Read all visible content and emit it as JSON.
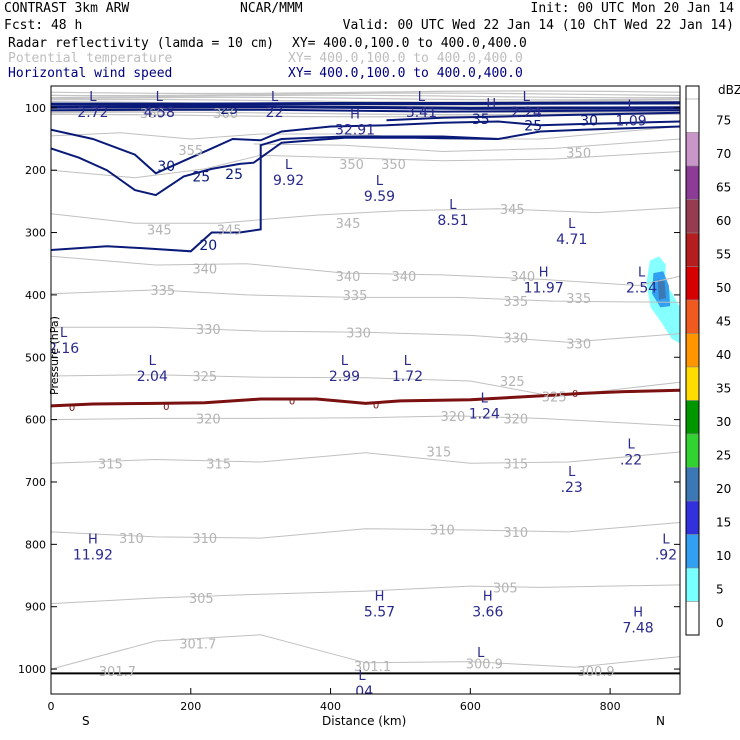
{
  "header": {
    "model": "CONTRAST  3km ARW",
    "center": "NCAR/MMM",
    "init": "Init: 00 UTC Mon 20 Jan 14",
    "fcst": "Fcst:   48 h",
    "valid": "Valid: 00 UTC Wed 22 Jan 14 (10 ChT Wed 22 Jan 14)",
    "fields": [
      {
        "name": "Radar reflectivity (lamda = 10 cm)",
        "xy": "XY= 400.0,100.0 to 400.0,400.0",
        "color": "#000000"
      },
      {
        "name": "Potential temperature",
        "xy": "XY= 400.0,100.0 to 400.0,400.0",
        "color": "#b4b4b4"
      },
      {
        "name": "Horizontal wind speed",
        "xy": "XY= 400.0,100.0 to 400.0,400.0",
        "color": "#000080"
      }
    ]
  },
  "chart_data": {
    "type": "cross-section contour",
    "xlabel": "Distance (km)",
    "ylabel": "Pressure (hPa)",
    "xlim": [
      0,
      900
    ],
    "ylim_hpa": [
      1040,
      65
    ],
    "x_ticks": [
      "0",
      "200",
      "400",
      "600",
      "800"
    ],
    "x_tick_values": [
      0,
      200,
      400,
      600,
      800
    ],
    "y_ticks": [
      "100",
      "200",
      "300",
      "400",
      "500",
      "600",
      "700",
      "800",
      "900",
      "1000"
    ],
    "y_tick_values": [
      100,
      200,
      300,
      400,
      500,
      600,
      700,
      800,
      900,
      1000
    ],
    "endpoints": {
      "left": "S",
      "right": "N"
    },
    "colorbar": {
      "unit": "dBZ",
      "levels": [
        "75",
        "70",
        "65",
        "60",
        "55",
        "50",
        "45",
        "40",
        "35",
        "30",
        "25",
        "20",
        "15",
        "10",
        "5",
        "0"
      ],
      "colors": [
        "#ffffff",
        "#c896c8",
        "#8c3c96",
        "#963c50",
        "#b41e1e",
        "#d70000",
        "#f05a1e",
        "#ff9600",
        "#ffdc00",
        "#009600",
        "#32d232",
        "#3c78b4",
        "#3232dc",
        "#32a0f0",
        "#78ffff",
        "#ffffff"
      ]
    },
    "theta_labels": [
      {
        "t": "360",
        "x": 145,
        "p": 108
      },
      {
        "t": "360",
        "x": 250,
        "p": 108
      },
      {
        "t": "355",
        "x": 200,
        "p": 168
      },
      {
        "t": "350",
        "x": 430,
        "p": 190
      },
      {
        "t": "350",
        "x": 490,
        "p": 190
      },
      {
        "t": "350",
        "x": 755,
        "p": 172
      },
      {
        "t": "345",
        "x": 155,
        "p": 295
      },
      {
        "t": "345",
        "x": 255,
        "p": 295
      },
      {
        "t": "345",
        "x": 425,
        "p": 285
      },
      {
        "t": "345",
        "x": 660,
        "p": 262
      },
      {
        "t": "340",
        "x": 220,
        "p": 358
      },
      {
        "t": "340",
        "x": 425,
        "p": 370
      },
      {
        "t": "340",
        "x": 505,
        "p": 370
      },
      {
        "t": "340",
        "x": 675,
        "p": 370
      },
      {
        "t": "335",
        "x": 160,
        "p": 392
      },
      {
        "t": "335",
        "x": 435,
        "p": 400
      },
      {
        "t": "335",
        "x": 665,
        "p": 410
      },
      {
        "t": "335",
        "x": 755,
        "p": 405
      },
      {
        "t": "330",
        "x": 225,
        "p": 455
      },
      {
        "t": "330",
        "x": 440,
        "p": 460
      },
      {
        "t": "330",
        "x": 665,
        "p": 468
      },
      {
        "t": "330",
        "x": 755,
        "p": 478
      },
      {
        "t": "325",
        "x": 220,
        "p": 530
      },
      {
        "t": "325",
        "x": 660,
        "p": 538
      },
      {
        "t": "325",
        "x": 720,
        "p": 563
      },
      {
        "t": "320",
        "x": 225,
        "p": 598
      },
      {
        "t": "320",
        "x": 575,
        "p": 594
      },
      {
        "t": "320",
        "x": 665,
        "p": 598
      },
      {
        "t": "315",
        "x": 85,
        "p": 670
      },
      {
        "t": "315",
        "x": 240,
        "p": 670
      },
      {
        "t": "315",
        "x": 555,
        "p": 651
      },
      {
        "t": "315",
        "x": 665,
        "p": 670
      },
      {
        "t": "310",
        "x": 115,
        "p": 790
      },
      {
        "t": "310",
        "x": 220,
        "p": 790
      },
      {
        "t": "310",
        "x": 560,
        "p": 776
      },
      {
        "t": "310",
        "x": 665,
        "p": 780
      },
      {
        "t": "305",
        "x": 215,
        "p": 886
      },
      {
        "t": "305",
        "x": 650,
        "p": 869
      },
      {
        "t": "301.7",
        "x": 95,
        "p": 1003
      },
      {
        "t": "301.7",
        "x": 210,
        "p": 959
      },
      {
        "t": "301.1",
        "x": 460,
        "p": 995
      },
      {
        "t": "300.9",
        "x": 620,
        "p": 991
      },
      {
        "t": "300.9",
        "x": 780,
        "p": 1003
      }
    ],
    "wind_labels": [
      {
        "t": "30",
        "x": 165,
        "p": 193
      },
      {
        "t": "25",
        "x": 215,
        "p": 210
      },
      {
        "t": "25",
        "x": 262,
        "p": 206
      },
      {
        "t": "20",
        "x": 225,
        "p": 320
      },
      {
        "t": "25",
        "x": 255,
        "p": 102
      },
      {
        "t": "35",
        "x": 615,
        "p": 118
      },
      {
        "t": "25",
        "x": 690,
        "p": 128
      },
      {
        "t": "30",
        "x": 770,
        "p": 120
      }
    ],
    "extrema": [
      {
        "kind": "L",
        "value": "2.72",
        "x": 60,
        "p": 99
      },
      {
        "kind": "L",
        "value": "4.58",
        "x": 155,
        "p": 99
      },
      {
        "kind": "L",
        "value": "22",
        "x": 320,
        "p": 99
      },
      {
        "kind": "L",
        "value": "3.41",
        "x": 530,
        "p": 99
      },
      {
        "kind": "L",
        "value": "2.24",
        "x": 680,
        "p": 99
      },
      {
        "kind": "L",
        "value": "1.09",
        "x": 830,
        "p": 112
      },
      {
        "kind": "H",
        "value": "32.91",
        "x": 435,
        "p": 127
      },
      {
        "kind": "H",
        "value": "",
        "x": 630,
        "p": 110
      },
      {
        "kind": "L",
        "value": "9.92",
        "x": 340,
        "p": 208
      },
      {
        "kind": "L",
        "value": "9.59",
        "x": 470,
        "p": 233
      },
      {
        "kind": "L",
        "value": "8.51",
        "x": 575,
        "p": 272
      },
      {
        "kind": "L",
        "value": "4.71",
        "x": 745,
        "p": 302
      },
      {
        "kind": "H",
        "value": "11.97",
        "x": 705,
        "p": 380
      },
      {
        "kind": "L",
        "value": "2.54",
        "x": 845,
        "p": 380
      },
      {
        "kind": "L",
        "value": "2.16",
        "x": 18,
        "p": 477
      },
      {
        "kind": "L",
        "value": "2.04",
        "x": 145,
        "p": 522
      },
      {
        "kind": "L",
        "value": "2.99",
        "x": 420,
        "p": 522
      },
      {
        "kind": "L",
        "value": "1.72",
        "x": 510,
        "p": 522
      },
      {
        "kind": "L",
        "value": "1.24",
        "x": 620,
        "p": 582
      },
      {
        "kind": "L",
        "value": ".22",
        "x": 830,
        "p": 656
      },
      {
        "kind": "L",
        "value": ".23",
        "x": 745,
        "p": 700
      },
      {
        "kind": "H",
        "value": "11.92",
        "x": 60,
        "p": 808
      },
      {
        "kind": "L",
        "value": ".92",
        "x": 880,
        "p": 808
      },
      {
        "kind": "H",
        "value": "5.57",
        "x": 470,
        "p": 900
      },
      {
        "kind": "H",
        "value": "3.66",
        "x": 625,
        "p": 900
      },
      {
        "kind": "H",
        "value": "7.48",
        "x": 840,
        "p": 925
      },
      {
        "kind": "L",
        "value": ".04",
        "x": 445,
        "p": 1027
      },
      {
        "kind": "L",
        "value": "",
        "x": 615,
        "p": 990
      }
    ],
    "zero_contour_label": "0",
    "surface_pressure_hpa": 1007
  }
}
